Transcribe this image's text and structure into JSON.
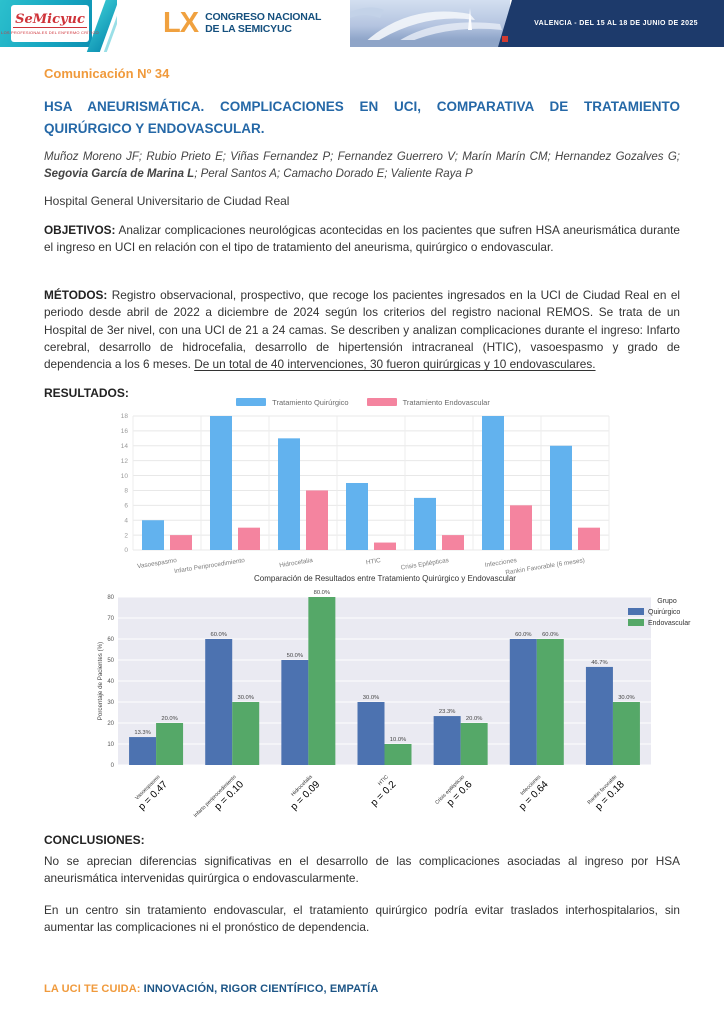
{
  "header": {
    "logo_name": "SeMicyuc",
    "logo_tagline": "LOS PROFESIONALES DEL ENFERMO CRÍTICO",
    "congress_number": "LX",
    "congress_line1": "CONGRESO NACIONAL",
    "congress_line2": "DE LA SEMICYUC",
    "event_info": "VALENCIA - DEL 15 AL 18 DE JUNIO DE 2025"
  },
  "document": {
    "comm_label": "Comunicación Nº 34",
    "title": "HSA ANEURISMÁTICA. COMPLICACIONES EN UCI, COMPARATIVA DE TRATAMIENTO QUIRÚRGICO Y ENDOVASCULAR.",
    "authors_prefix": "Muñoz Moreno JF; Rubio Prieto E; Viñas Fernandez P; Fernandez Guerrero V; Marín Marín CM; Hernandez Gozalves G; ",
    "authors_bold": "Segovia García de Marina L",
    "authors_suffix": "; Peral Santos A; Camacho Dorado E; Valiente Raya P",
    "affiliation": "Hospital General Universitario de Ciudad Real",
    "objetivos_label": "OBJETIVOS:",
    "objetivos_text": " Analizar complicaciones neurológicas acontecidas en los pacientes que sufren HSA aneurismática durante el ingreso en UCI en relación con el tipo de tratamiento del aneurisma, quirúrgico o endovascular.",
    "metodos_label": "MÉTODOS:",
    "metodos_text": " Registro observacional, prospectivo, que recoge los pacientes ingresados en la UCI de Ciudad Real en el periodo desde abril de 2022 a diciembre de 2024 según los criterios del registro nacional REMOS. Se trata de un Hospital de 3er nivel, con una UCI de 21 a 24 camas. Se describen y analizan complicaciones durante el ingreso: Infarto cerebral, desarrollo de hidrocefalia, desarrollo de hipertensión intracraneal (HTIC), vasoespasmo y grado de dependencia a los 6 meses. ",
    "metodos_underlined": "De un total de 40 intervenciones, 30 fueron quirúrgicas y 10 endovasculares.",
    "resultados_label": "RESULTADOS:",
    "conclusiones_label": "CONCLUSIONES:",
    "conclusiones_p1": "No se aprecian diferencias significativas en el desarrollo de las complicaciones asociadas al ingreso por HSA aneurismática intervenidas quirúrgica o endovascularmente.",
    "conclusiones_p2": "En un centro sin tratamiento endovascular, el tratamiento quirúrgico podría evitar traslados interhospitalarios, sin aumentar las complicaciones ni el pronóstico de dependencia."
  },
  "footer": {
    "slogan_accent": "LA UCI TE CUIDA:",
    "slogan_rest": " INNOVACIÓN, RIGOR CIENTÍFICO, EMPATÍA"
  },
  "colors": {
    "accent_orange": "#f09a3c",
    "title_blue": "#2568a7",
    "band_navy": "#1d3a6b",
    "teal": "#17a6c1"
  },
  "chart_data": [
    {
      "type": "bar",
      "categories": [
        "Vasoespasmo",
        "Infarto Periprocedimiento",
        "Hidrocefalia",
        "HTIC",
        "Crisis Epilépticas",
        "Infecciones",
        "Rankin Favorable (6 meses)"
      ],
      "series": [
        {
          "name": "Tratamiento Quirúrgico",
          "color": "#62b2ee",
          "values": [
            4,
            18,
            15,
            9,
            7,
            18,
            14
          ]
        },
        {
          "name": "Tratamiento Endovascular",
          "color": "#f4849f",
          "values": [
            2,
            3,
            8,
            1,
            2,
            6,
            3
          ]
        }
      ],
      "ylim": [
        0,
        18
      ],
      "ytick_step": 2,
      "legend_position": "top",
      "grid": true
    },
    {
      "type": "bar",
      "title": "Comparación de Resultados entre Tratamiento Quirúrgico y Endovascular",
      "ylabel": "Porcentaje de Pacientes (%)",
      "categories": [
        "Vasoespasmo",
        "Infarto periprocedimiento",
        "Hidrocefalia",
        "HTIC",
        "Crisis epilépticas",
        "Infecciones",
        "Rankin favorable"
      ],
      "p_values": [
        "p = 0.47",
        "p = 0.10",
        "p = 0.09",
        "p = 0.2",
        "p = 0.6",
        "p = 0.64",
        "p = 0.18"
      ],
      "series": [
        {
          "name": "Quirúrgico",
          "color": "#4c72b0",
          "values": [
            13.3,
            60.0,
            50.0,
            30.0,
            23.3,
            60.0,
            46.7
          ]
        },
        {
          "name": "Endovascular",
          "color": "#55a868",
          "values": [
            20.0,
            30.0,
            80.0,
            10.0,
            20.0,
            60.0,
            30.0
          ]
        }
      ],
      "bar_label_format": "percent_1dp",
      "ylim": [
        0,
        80
      ],
      "ytick_step": 10,
      "legend_title": "Grupo",
      "legend_position": "upper right",
      "plot_bg": "#eaeaf2",
      "grid": true
    }
  ]
}
